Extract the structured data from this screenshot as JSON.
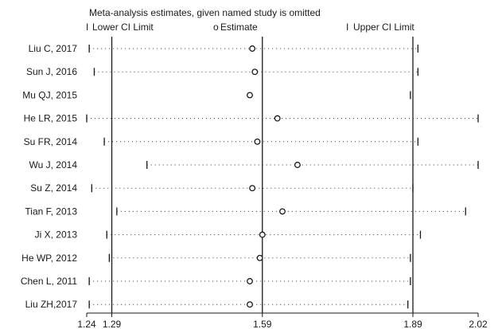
{
  "chart_data": {
    "type": "scatter",
    "title": "Meta-analysis estimates, given named study is omitted",
    "legend": {
      "placement": "top",
      "items": [
        {
          "symbol": "I",
          "label": "Lower CI Limit"
        },
        {
          "symbol": "o",
          "label": "Estimate"
        },
        {
          "symbol": "I",
          "label": "Upper CI Limit"
        }
      ]
    },
    "xaxis": {
      "ticks": [
        1.24,
        1.29,
        1.59,
        1.89,
        2.02
      ],
      "tick_labels": [
        "1.24",
        "1.29",
        "1.59",
        "1.89",
        "2.02"
      ],
      "range": [
        1.24,
        2.02
      ],
      "reference_lines": [
        1.29,
        1.59,
        1.89
      ]
    },
    "studies": [
      {
        "name": "Liu C, 2017",
        "lower": 1.245,
        "estimate": 1.57,
        "upper": 1.9
      },
      {
        "name": "Sun J, 2016",
        "lower": 1.255,
        "estimate": 1.575,
        "upper": 1.9
      },
      {
        "name": "Mu QJ, 2015",
        "lower": null,
        "estimate": 1.565,
        "upper": 1.885
      },
      {
        "name": "He LR, 2015",
        "lower": 1.24,
        "estimate": 1.62,
        "upper": 2.02
      },
      {
        "name": "Su FR, 2014",
        "lower": 1.275,
        "estimate": 1.58,
        "upper": 1.9
      },
      {
        "name": "Wu J, 2014",
        "lower": 1.36,
        "estimate": 1.66,
        "upper": 2.02
      },
      {
        "name": "Su Z, 2014",
        "lower": 1.25,
        "estimate": 1.57,
        "upper": 1.89
      },
      {
        "name": "Tian F, 2013",
        "lower": 1.3,
        "estimate": 1.63,
        "upper": 1.995
      },
      {
        "name": "Ji X, 2013",
        "lower": 1.28,
        "estimate": 1.59,
        "upper": 1.905
      },
      {
        "name": "He WP, 2012",
        "lower": 1.285,
        "estimate": 1.585,
        "upper": 1.885
      },
      {
        "name": "Chen L, 2011",
        "lower": 1.245,
        "estimate": 1.565,
        "upper": 1.885
      },
      {
        "name": "Liu ZH,2017",
        "lower": 1.245,
        "estimate": 1.565,
        "upper": 1.88
      }
    ],
    "grid": false
  }
}
